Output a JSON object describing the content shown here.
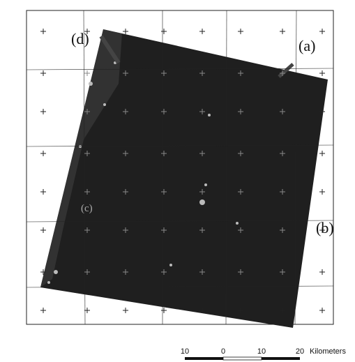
{
  "labels": {
    "a": "(a)",
    "b": "(b)",
    "c": "(c)",
    "d": "(d)"
  },
  "scale_bar": {
    "ticks": [
      "10",
      "0",
      "10",
      "20"
    ],
    "unit": "Kilometers"
  }
}
